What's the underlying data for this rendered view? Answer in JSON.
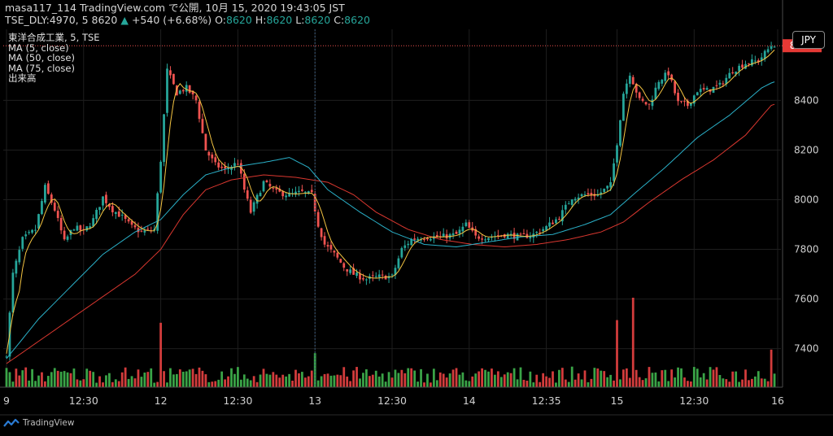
{
  "header": {
    "line1_prefix": "masa117_114 TradingView.com で公開, 10月 15, 2020 19:43:05 JST",
    "symbol_interval": "TSE_DLY:4970, 5",
    "last_price": "8620",
    "change_glyph": "▲",
    "change": "+540 (+6.68%)",
    "o_label": "O:",
    "o_val": "8620",
    "h_label": "H:",
    "h_val": "8620",
    "l_label": "L:",
    "l_val": "8620",
    "c_label": "C:",
    "c_val": "8620"
  },
  "legend": {
    "title": "東洋合成工業, 5, TSE",
    "ma5": "MA (5, close)",
    "ma50": "MA (50, close)",
    "ma75": "MA (75, close)",
    "volume": "出来高"
  },
  "currency_badge": "JPY",
  "price_tag": "8620",
  "footer": {
    "brand": "TradingView",
    "brand_icon": "tradingview-logo-icon"
  },
  "colors": {
    "up": "#26a69a",
    "down": "#ef5350",
    "ma5": "#f5c542",
    "ma50": "#2ab0c8",
    "ma75": "#d9372f",
    "vol_up": "#3aa447",
    "vol_down": "#d33c3c"
  },
  "chart_data": {
    "type": "candlestick",
    "y_ticks": [
      7400,
      7600,
      7800,
      8000,
      8200,
      8400
    ],
    "ylim": [
      7245,
      8660
    ],
    "x_ticks": [
      {
        "label": "9",
        "idx": 0
      },
      {
        "label": "12:30",
        "idx": 24
      },
      {
        "label": "12",
        "idx": 48
      },
      {
        "label": "12:30",
        "idx": 72
      },
      {
        "label": "13",
        "idx": 96
      },
      {
        "label": "12:30",
        "idx": 120
      },
      {
        "label": "14",
        "idx": 144
      },
      {
        "label": "12:35",
        "idx": 168
      },
      {
        "label": "15",
        "idx": 190
      },
      {
        "label": "12:30",
        "idx": 214
      },
      {
        "label": "16",
        "idx": 240
      }
    ],
    "close_anchors": [
      [
        0,
        7380
      ],
      [
        2,
        7700
      ],
      [
        5,
        7840
      ],
      [
        9,
        7880
      ],
      [
        12,
        8050
      ],
      [
        15,
        7960
      ],
      [
        18,
        7830
      ],
      [
        21,
        7890
      ],
      [
        24,
        7870
      ],
      [
        27,
        7920
      ],
      [
        30,
        8010
      ],
      [
        33,
        7960
      ],
      [
        36,
        7930
      ],
      [
        39,
        7890
      ],
      [
        42,
        7870
      ],
      [
        46,
        7880
      ],
      [
        48,
        8160
      ],
      [
        50,
        8520
      ],
      [
        53,
        8430
      ],
      [
        56,
        8450
      ],
      [
        59,
        8400
      ],
      [
        62,
        8200
      ],
      [
        65,
        8140
      ],
      [
        68,
        8120
      ],
      [
        72,
        8150
      ],
      [
        74,
        8040
      ],
      [
        76,
        7950
      ],
      [
        80,
        8070
      ],
      [
        84,
        8030
      ],
      [
        88,
        8020
      ],
      [
        92,
        8030
      ],
      [
        95,
        8020
      ],
      [
        97,
        7900
      ],
      [
        99,
        7820
      ],
      [
        102,
        7780
      ],
      [
        105,
        7730
      ],
      [
        108,
        7700
      ],
      [
        112,
        7680
      ],
      [
        116,
        7690
      ],
      [
        120,
        7690
      ],
      [
        123,
        7800
      ],
      [
        126,
        7840
      ],
      [
        130,
        7850
      ],
      [
        135,
        7850
      ],
      [
        140,
        7860
      ],
      [
        143,
        7900
      ],
      [
        146,
        7850
      ],
      [
        150,
        7850
      ],
      [
        155,
        7860
      ],
      [
        160,
        7850
      ],
      [
        164,
        7860
      ],
      [
        168,
        7890
      ],
      [
        172,
        7930
      ],
      [
        176,
        8010
      ],
      [
        180,
        8020
      ],
      [
        184,
        8020
      ],
      [
        188,
        8060
      ],
      [
        190,
        8230
      ],
      [
        192,
        8430
      ],
      [
        194,
        8510
      ],
      [
        197,
        8400
      ],
      [
        200,
        8380
      ],
      [
        203,
        8480
      ],
      [
        206,
        8510
      ],
      [
        209,
        8390
      ],
      [
        212,
        8380
      ],
      [
        215,
        8440
      ],
      [
        218,
        8440
      ],
      [
        222,
        8460
      ],
      [
        226,
        8520
      ],
      [
        230,
        8550
      ],
      [
        234,
        8560
      ],
      [
        238,
        8620
      ]
    ],
    "ma50_anchors": [
      [
        0,
        7360
      ],
      [
        10,
        7520
      ],
      [
        20,
        7650
      ],
      [
        30,
        7780
      ],
      [
        40,
        7870
      ],
      [
        48,
        7920
      ],
      [
        55,
        8020
      ],
      [
        62,
        8100
      ],
      [
        70,
        8130
      ],
      [
        80,
        8150
      ],
      [
        88,
        8170
      ],
      [
        94,
        8130
      ],
      [
        100,
        8040
      ],
      [
        110,
        7950
      ],
      [
        120,
        7870
      ],
      [
        130,
        7820
      ],
      [
        140,
        7810
      ],
      [
        150,
        7830
      ],
      [
        160,
        7850
      ],
      [
        170,
        7860
      ],
      [
        180,
        7900
      ],
      [
        188,
        7940
      ],
      [
        195,
        8020
      ],
      [
        205,
        8130
      ],
      [
        215,
        8250
      ],
      [
        225,
        8340
      ],
      [
        235,
        8450
      ],
      [
        238,
        8470
      ]
    ],
    "ma75_anchors": [
      [
        0,
        7340
      ],
      [
        10,
        7430
      ],
      [
        20,
        7520
      ],
      [
        30,
        7610
      ],
      [
        40,
        7700
      ],
      [
        48,
        7800
      ],
      [
        55,
        7940
      ],
      [
        62,
        8040
      ],
      [
        70,
        8080
      ],
      [
        80,
        8100
      ],
      [
        90,
        8090
      ],
      [
        100,
        8070
      ],
      [
        108,
        8020
      ],
      [
        115,
        7950
      ],
      [
        125,
        7880
      ],
      [
        135,
        7840
      ],
      [
        145,
        7820
      ],
      [
        155,
        7810
      ],
      [
        165,
        7820
      ],
      [
        175,
        7840
      ],
      [
        185,
        7870
      ],
      [
        192,
        7910
      ],
      [
        200,
        7990
      ],
      [
        210,
        8080
      ],
      [
        220,
        8160
      ],
      [
        230,
        8260
      ],
      [
        238,
        8380
      ]
    ],
    "vol_spikes": [
      [
        48,
        0.72
      ],
      [
        96,
        0.38
      ],
      [
        190,
        0.75
      ],
      [
        195,
        1.0
      ],
      [
        238,
        0.42
      ]
    ]
  }
}
